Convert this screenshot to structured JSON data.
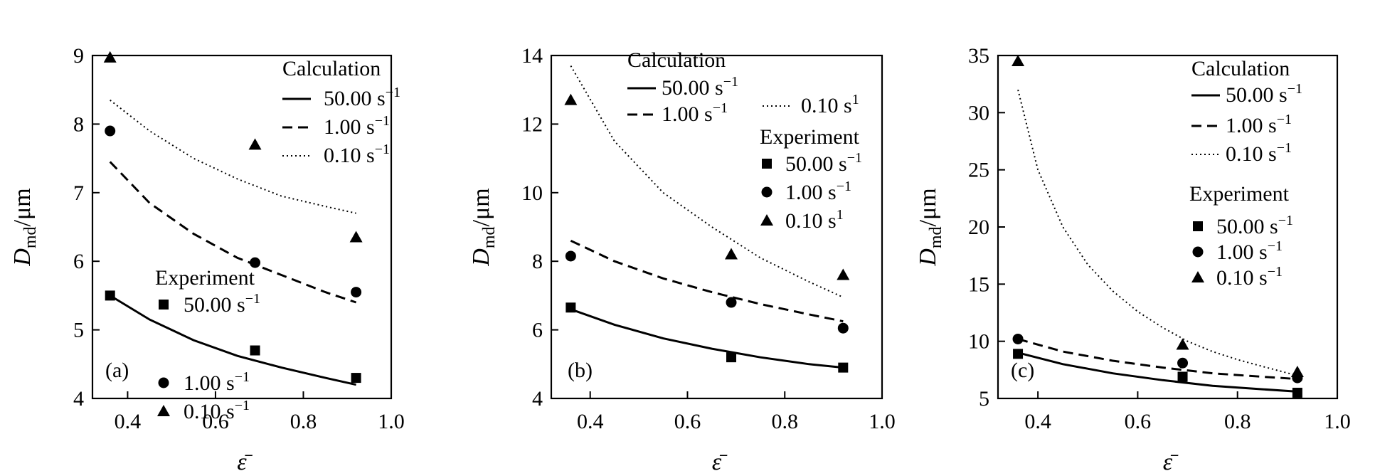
{
  "chart_data": [
    {
      "type": "line",
      "panel_label": "(a)",
      "xlabel": "ε̄",
      "ylabel_main": "D",
      "ylabel_sub": "md",
      "ylabel_unit": "/μm",
      "xlim": [
        0.32,
        1.0
      ],
      "ylim": [
        4,
        9
      ],
      "xticks": [
        "0.4",
        "0.6",
        "0.8",
        "1.0"
      ],
      "yticks": [
        "4",
        "5",
        "6",
        "7",
        "8",
        "9"
      ],
      "legend_calc_title": "Calculation",
      "legend_exp_title": "Experiment",
      "series": [
        {
          "name": "50.00 s",
          "superscript": "−1",
          "style": "solid",
          "marker": "square",
          "calc_x": [
            0.36,
            0.45,
            0.55,
            0.65,
            0.75,
            0.85,
            0.92
          ],
          "calc_y": [
            5.5,
            5.15,
            4.85,
            4.62,
            4.45,
            4.3,
            4.2
          ],
          "exp_x": [
            0.36,
            0.69,
            0.92
          ],
          "exp_y": [
            5.5,
            4.7,
            4.3
          ]
        },
        {
          "name": "1.00 s",
          "superscript": "−1",
          "style": "dashed",
          "marker": "circle",
          "calc_x": [
            0.36,
            0.45,
            0.55,
            0.65,
            0.75,
            0.85,
            0.92
          ],
          "calc_y": [
            7.45,
            6.85,
            6.4,
            6.05,
            5.8,
            5.55,
            5.4
          ],
          "exp_x": [
            0.36,
            0.69,
            0.92
          ],
          "exp_y": [
            7.9,
            5.98,
            5.55
          ]
        },
        {
          "name": "0.10 s",
          "superscript": "−1",
          "style": "dotted",
          "marker": "triangle",
          "calc_x": [
            0.36,
            0.45,
            0.55,
            0.65,
            0.75,
            0.85,
            0.92
          ],
          "calc_y": [
            8.35,
            7.9,
            7.5,
            7.2,
            6.95,
            6.8,
            6.7
          ],
          "exp_x": [
            0.36,
            0.69,
            0.92
          ],
          "exp_y": [
            8.97,
            7.7,
            6.35
          ]
        }
      ]
    },
    {
      "type": "line",
      "panel_label": "(b)",
      "xlabel": "ε̄",
      "ylabel_main": "D",
      "ylabel_sub": "md",
      "ylabel_unit": "/μm",
      "xlim": [
        0.32,
        1.0
      ],
      "ylim": [
        4,
        14
      ],
      "xticks": [
        "0.4",
        "0.6",
        "0.8",
        "1.0"
      ],
      "yticks": [
        "4",
        "6",
        "8",
        "10",
        "12",
        "14"
      ],
      "legend_calc_title": "Calculation",
      "legend_exp_title": "Experiment",
      "series": [
        {
          "name": "50.00 s",
          "superscript": "−1",
          "style": "solid",
          "marker": "square",
          "calc_x": [
            0.36,
            0.45,
            0.55,
            0.65,
            0.75,
            0.85,
            0.92
          ],
          "calc_y": [
            6.6,
            6.15,
            5.75,
            5.45,
            5.2,
            5.0,
            4.9
          ],
          "exp_x": [
            0.36,
            0.69,
            0.92
          ],
          "exp_y": [
            6.65,
            5.2,
            4.9
          ]
        },
        {
          "name": "1.00 s",
          "superscript": "−1",
          "style": "dashed",
          "marker": "circle",
          "calc_x": [
            0.36,
            0.45,
            0.55,
            0.65,
            0.75,
            0.85,
            0.92
          ],
          "calc_y": [
            8.6,
            8.0,
            7.5,
            7.1,
            6.75,
            6.45,
            6.25
          ],
          "exp_x": [
            0.36,
            0.69,
            0.92
          ],
          "exp_y": [
            8.15,
            6.8,
            6.05
          ]
        },
        {
          "name": "0.10 s",
          "superscript": "1",
          "style": "dotted",
          "marker": "triangle",
          "calc_x": [
            0.36,
            0.45,
            0.55,
            0.65,
            0.75,
            0.85,
            0.92
          ],
          "calc_y": [
            13.7,
            11.5,
            10.0,
            9.0,
            8.1,
            7.4,
            6.95
          ],
          "exp_x": [
            0.36,
            0.69,
            0.92
          ],
          "exp_y": [
            12.7,
            8.2,
            7.6
          ]
        }
      ]
    },
    {
      "type": "line",
      "panel_label": "(c)",
      "xlabel": "ε̄",
      "ylabel_main": "D",
      "ylabel_sub": "md",
      "ylabel_unit": "/μm",
      "xlim": [
        0.32,
        1.0
      ],
      "ylim": [
        5,
        35
      ],
      "xticks": [
        "0.4",
        "0.6",
        "0.8",
        "1.0"
      ],
      "yticks": [
        "5",
        "10",
        "15",
        "20",
        "25",
        "30",
        "35"
      ],
      "legend_calc_title": "Calculation",
      "legend_exp_title": "Experiment",
      "series": [
        {
          "name": "50.00 s",
          "superscript": "−1",
          "style": "solid",
          "marker": "square",
          "calc_x": [
            0.36,
            0.45,
            0.55,
            0.65,
            0.75,
            0.85,
            0.92
          ],
          "calc_y": [
            9.0,
            8.0,
            7.2,
            6.6,
            6.1,
            5.8,
            5.6
          ],
          "exp_x": [
            0.36,
            0.69,
            0.92
          ],
          "exp_y": [
            8.9,
            6.9,
            5.5
          ]
        },
        {
          "name": "1.00 s",
          "superscript": "−1",
          "style": "dashed",
          "marker": "circle",
          "calc_x": [
            0.36,
            0.45,
            0.55,
            0.65,
            0.75,
            0.85,
            0.92
          ],
          "calc_y": [
            10.2,
            9.1,
            8.3,
            7.7,
            7.2,
            6.9,
            6.7
          ],
          "exp_x": [
            0.36,
            0.69,
            0.92
          ],
          "exp_y": [
            10.2,
            8.1,
            6.8
          ]
        },
        {
          "name": "0.10 s",
          "superscript": "−1",
          "style": "dotted",
          "marker": "triangle",
          "calc_x": [
            0.36,
            0.4,
            0.45,
            0.5,
            0.55,
            0.6,
            0.65,
            0.7,
            0.75,
            0.8,
            0.85,
            0.92
          ],
          "calc_y": [
            32.0,
            25.0,
            20.0,
            16.7,
            14.4,
            12.6,
            11.2,
            10.0,
            9.1,
            8.4,
            7.8,
            7.0
          ],
          "exp_x": [
            0.36,
            0.69,
            0.92
          ],
          "exp_y": [
            34.5,
            9.7,
            7.3
          ]
        }
      ]
    }
  ]
}
